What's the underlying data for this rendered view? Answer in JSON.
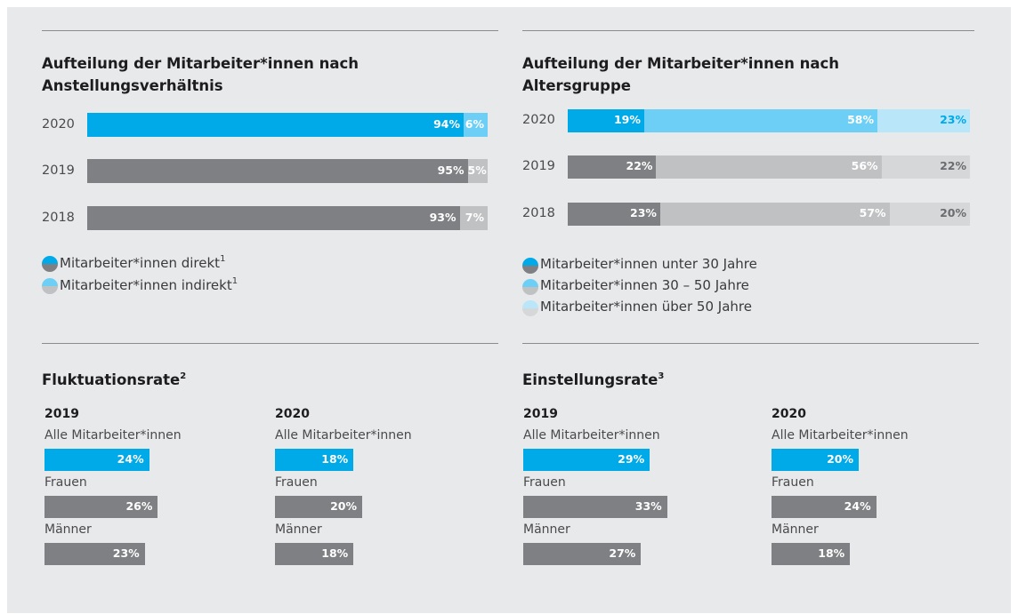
{
  "chart_data": [
    {
      "type": "stacked_bar",
      "title": "Aufteilung der Mitarbeiter*innen nach Anstellungsverhältnis",
      "categories": [
        "2020",
        "2019",
        "2018"
      ],
      "xlim": [
        0,
        100
      ],
      "series": [
        {
          "name": "Mitarbeiter*innen direkt",
          "footnote": "1",
          "colors": [
            "#00a9e8",
            "#7f8083",
            "#7f8083"
          ],
          "values": [
            94,
            95,
            93
          ],
          "value_labels": [
            "94%",
            "95%",
            "93%"
          ]
        },
        {
          "name": "Mitarbeiter*innen indirekt",
          "footnote": "1",
          "colors": [
            "#6dcff6",
            "#c0c1c3",
            "#c0c1c3"
          ],
          "values": [
            6,
            5,
            7
          ],
          "value_labels": [
            "6%",
            "5%",
            "7%"
          ]
        }
      ]
    },
    {
      "type": "stacked_bar",
      "title": "Aufteilung der Mitarbeiter*innen nach Altersgruppe",
      "categories": [
        "2020",
        "2019",
        "2018"
      ],
      "xlim": [
        0,
        100
      ],
      "series": [
        {
          "name": "Mitarbeiter*innen unter 30 Jahre",
          "colors": [
            "#00a9e8",
            "#7f8083",
            "#7f8083"
          ],
          "values": [
            19,
            22,
            23
          ],
          "value_labels": [
            "19%",
            "22%",
            "23%"
          ]
        },
        {
          "name": "Mitarbeiter*innen 30 – 50 Jahre",
          "colors": [
            "#6dcff6",
            "#c0c1c3",
            "#c0c1c3"
          ],
          "values": [
            58,
            56,
            57
          ],
          "value_labels": [
            "58%",
            "56%",
            "57%"
          ]
        },
        {
          "name": "Mitarbeiter*innen über 50 Jahre",
          "colors": [
            "#b9e6f9",
            "#d6d7d9",
            "#d6d7d9"
          ],
          "label_colors": [
            "#00a9e8",
            "#6b6c6f",
            "#6b6c6f"
          ],
          "values": [
            23,
            22,
            20
          ],
          "value_labels": [
            "23%",
            "22%",
            "20%"
          ]
        }
      ]
    },
    {
      "type": "bar",
      "title": "Fluktuationsrate",
      "title_footnote": "2",
      "categories": [
        "Alle Mitarbeiter*innen",
        "Frauen",
        "Männer"
      ],
      "xlim": [
        0,
        100
      ],
      "series": [
        {
          "name": "2019",
          "colors": [
            "#00a9e8",
            "#7f8083",
            "#7f8083"
          ],
          "values": [
            24,
            26,
            23
          ],
          "value_labels": [
            "24%",
            "26%",
            "23%"
          ]
        },
        {
          "name": "2020",
          "colors": [
            "#00a9e8",
            "#7f8083",
            "#7f8083"
          ],
          "values": [
            18,
            20,
            18
          ],
          "value_labels": [
            "18%",
            "20%",
            "18%"
          ]
        }
      ]
    },
    {
      "type": "bar",
      "title": "Einstellungsrate",
      "title_footnote": "3",
      "categories": [
        "Alle Mitarbeiter*innen",
        "Frauen",
        "Männer"
      ],
      "xlim": [
        0,
        100
      ],
      "series": [
        {
          "name": "2019",
          "colors": [
            "#00a9e8",
            "#7f8083",
            "#7f8083"
          ],
          "values": [
            29,
            33,
            27
          ],
          "value_labels": [
            "29%",
            "33%",
            "27%"
          ]
        },
        {
          "name": "2020",
          "colors": [
            "#00a9e8",
            "#7f8083",
            "#7f8083"
          ],
          "values": [
            20,
            24,
            18
          ],
          "value_labels": [
            "20%",
            "24%",
            "18%"
          ]
        }
      ]
    }
  ]
}
